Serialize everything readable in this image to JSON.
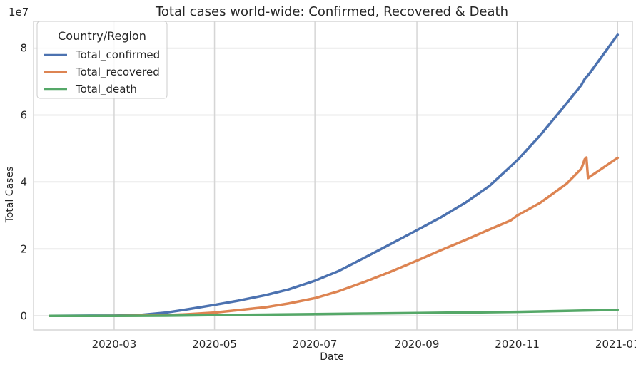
{
  "chart_data": {
    "type": "line",
    "title": "Total cases world-wide: Confirmed, Recovered & Death",
    "xlabel": "Date",
    "ylabel": "Total Cases",
    "y_offset_label": "1e7",
    "x_type": "date",
    "xlim": [
      "2020-01-12",
      "2021-01-10"
    ],
    "ylim": [
      -4200000,
      88000000
    ],
    "x_ticks": [
      "2020-03-01",
      "2020-05-01",
      "2020-07-01",
      "2020-09-01",
      "2020-11-01",
      "2021-01-01"
    ],
    "x_tick_labels": [
      "2020-03",
      "2020-05",
      "2020-07",
      "2020-09",
      "2020-11",
      "2021-01"
    ],
    "y_ticks": [
      0,
      20000000,
      40000000,
      60000000,
      80000000
    ],
    "y_tick_labels": [
      "0",
      "2",
      "4",
      "6",
      "8"
    ],
    "grid": true,
    "legend": {
      "title": "Country/Region",
      "position": "top-left"
    },
    "series": [
      {
        "name": "Total_confirmed",
        "color": "#4c72b0",
        "points": [
          [
            "2020-01-22",
            0
          ],
          [
            "2020-02-15",
            70000
          ],
          [
            "2020-03-01",
            90000
          ],
          [
            "2020-03-15",
            180000
          ],
          [
            "2020-04-01",
            950000
          ],
          [
            "2020-04-15",
            2000000
          ],
          [
            "2020-05-01",
            3300000
          ],
          [
            "2020-05-15",
            4500000
          ],
          [
            "2020-06-01",
            6200000
          ],
          [
            "2020-06-15",
            7900000
          ],
          [
            "2020-07-01",
            10500000
          ],
          [
            "2020-07-15",
            13300000
          ],
          [
            "2020-08-01",
            17600000
          ],
          [
            "2020-08-15",
            21200000
          ],
          [
            "2020-09-01",
            25600000
          ],
          [
            "2020-09-15",
            29300000
          ],
          [
            "2020-10-01",
            34000000
          ],
          [
            "2020-10-15",
            38800000
          ],
          [
            "2020-11-01",
            46500000
          ],
          [
            "2020-11-15",
            54000000
          ],
          [
            "2020-12-01",
            63500000
          ],
          [
            "2020-12-10",
            69000000
          ],
          [
            "2020-12-12",
            70800000
          ],
          [
            "2020-12-15",
            72500000
          ],
          [
            "2021-01-01",
            84000000
          ]
        ]
      },
      {
        "name": "Total_recovered",
        "color": "#dd8452",
        "points": [
          [
            "2020-01-22",
            0
          ],
          [
            "2020-02-15",
            10000
          ],
          [
            "2020-03-01",
            40000
          ],
          [
            "2020-03-15",
            70000
          ],
          [
            "2020-04-01",
            200000
          ],
          [
            "2020-04-15",
            500000
          ],
          [
            "2020-05-01",
            1000000
          ],
          [
            "2020-05-15",
            1700000
          ],
          [
            "2020-06-01",
            2600000
          ],
          [
            "2020-06-15",
            3700000
          ],
          [
            "2020-07-01",
            5300000
          ],
          [
            "2020-07-15",
            7300000
          ],
          [
            "2020-08-01",
            10300000
          ],
          [
            "2020-08-15",
            13000000
          ],
          [
            "2020-09-01",
            16500000
          ],
          [
            "2020-09-15",
            19500000
          ],
          [
            "2020-10-01",
            22800000
          ],
          [
            "2020-10-15",
            25800000
          ],
          [
            "2020-10-28",
            28500000
          ],
          [
            "2020-11-01",
            30000000
          ],
          [
            "2020-11-15",
            33800000
          ],
          [
            "2020-12-01",
            39500000
          ],
          [
            "2020-12-10",
            44000000
          ],
          [
            "2020-12-12",
            46800000
          ],
          [
            "2020-12-13",
            47300000
          ],
          [
            "2020-12-14",
            41200000
          ],
          [
            "2021-01-01",
            47200000
          ]
        ]
      },
      {
        "name": "Total_death",
        "color": "#55a868",
        "points": [
          [
            "2020-01-22",
            0
          ],
          [
            "2020-03-01",
            3000
          ],
          [
            "2020-04-01",
            50000
          ],
          [
            "2020-05-01",
            240000
          ],
          [
            "2020-06-01",
            380000
          ],
          [
            "2020-07-01",
            520000
          ],
          [
            "2020-08-01",
            690000
          ],
          [
            "2020-09-01",
            860000
          ],
          [
            "2020-10-01",
            1020000
          ],
          [
            "2020-11-01",
            1200000
          ],
          [
            "2020-12-01",
            1480000
          ],
          [
            "2021-01-01",
            1820000
          ]
        ]
      }
    ]
  }
}
